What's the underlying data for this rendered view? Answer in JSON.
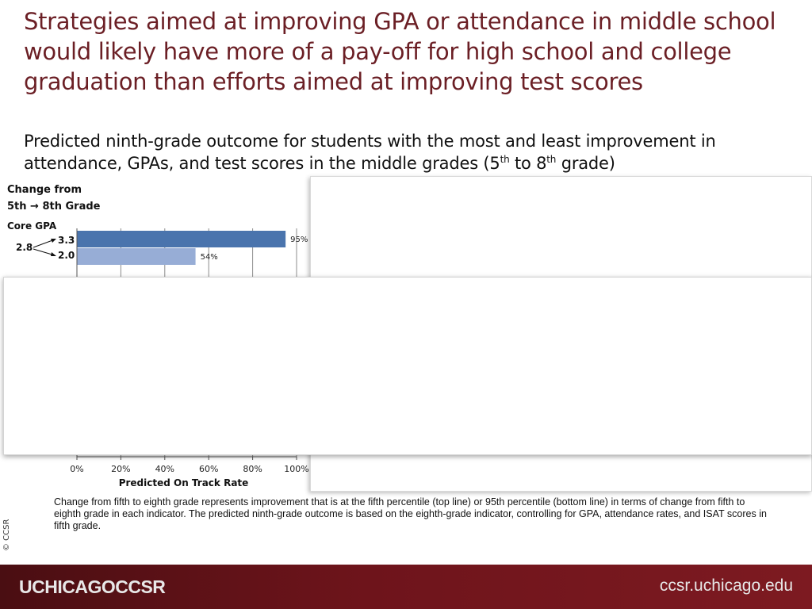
{
  "title": "Strategies aimed at improving GPA or attendance in middle school would likely have more of a pay-off for high school and college graduation than efforts aimed at improving test scores",
  "subtitle": {
    "part1": "Predicted ninth-grade outcome for students with the most and least improvement in attendance, GPAs, and test scores in the middle grades (5",
    "sup1": "th",
    "part2": " to 8",
    "sup2": "th",
    "part3": " grade)"
  },
  "change_header": {
    "line1": "Change from",
    "line2": "5th → 8th Grade"
  },
  "indicator": {
    "label": "Core GPA",
    "start": "2.8",
    "end_top": "3.3",
    "end_bottom": "2.0"
  },
  "chart_data": {
    "type": "bar",
    "orientation": "horizontal",
    "categories": [
      "3.3",
      "2.0"
    ],
    "series": [
      {
        "values": [
          95,
          54
        ]
      }
    ],
    "bar_colors": [
      "#4a74ad",
      "#97add6"
    ],
    "data_labels": [
      "95%",
      "54%"
    ],
    "xlabel": "Predicted On Track Rate",
    "xlim": [
      0,
      100
    ],
    "xticks": [
      "0%",
      "20%",
      "40%",
      "60%",
      "80%",
      "100%"
    ],
    "grid": true
  },
  "footnote": "Change from fifth to eighth grade represents improvement that is at the fifth percentile (top line) or 95th percentile (bottom line) in terms of change from fifth to eighth grade in each indicator. The predicted ninth-grade outcome is based on the eighth-grade indicator, controlling for GPA, attendance rates, and ISAT scores in fifth grade.",
  "copyright": "© CCSR",
  "footer": {
    "logo": "UCHICAGOCCSR",
    "url": "ccsr.uchicago.edu"
  }
}
